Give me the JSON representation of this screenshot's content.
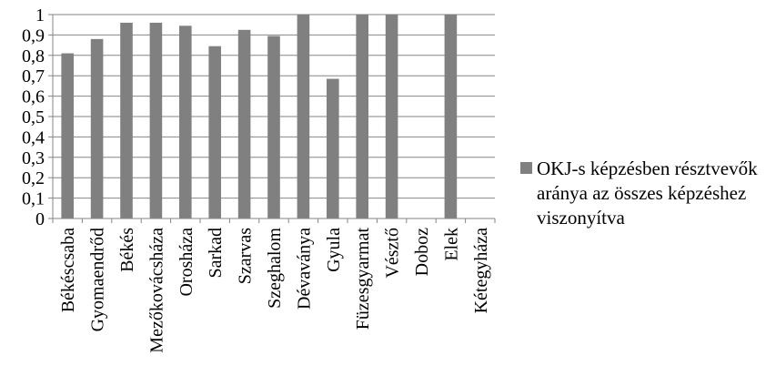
{
  "chart_data": {
    "type": "bar",
    "title": "",
    "xlabel": "",
    "ylabel": "",
    "categories": [
      "Békéscsaba",
      "Gyomaendrőd",
      "Békés",
      "Mezőkovácsháza",
      "Orosháza",
      "Sarkad",
      "Szarvas",
      "Szeghalom",
      "Dévaványa",
      "Gyula",
      "Füzesgyarmat",
      "Vésztő",
      "Doboz",
      "Elek",
      "Kétegyháza"
    ],
    "series": [
      {
        "name": "OKJ-s képzésben résztvevők aránya az összes képzéshez viszonyítva",
        "values": [
          0.81,
          0.88,
          0.96,
          0.96,
          0.945,
          0.845,
          0.925,
          0.895,
          1.0,
          0.685,
          1.0,
          1.0,
          0,
          1.0,
          0
        ]
      }
    ],
    "ylim": [
      0,
      1
    ],
    "yticks": [
      "0",
      "0,1",
      "0,2",
      "0,3",
      "0,4",
      "0,5",
      "0,6",
      "0,7",
      "0,8",
      "0,9",
      "1"
    ],
    "grid": true,
    "legend_position": "right",
    "bar_color": "#808080",
    "grid_color": "#868686"
  }
}
